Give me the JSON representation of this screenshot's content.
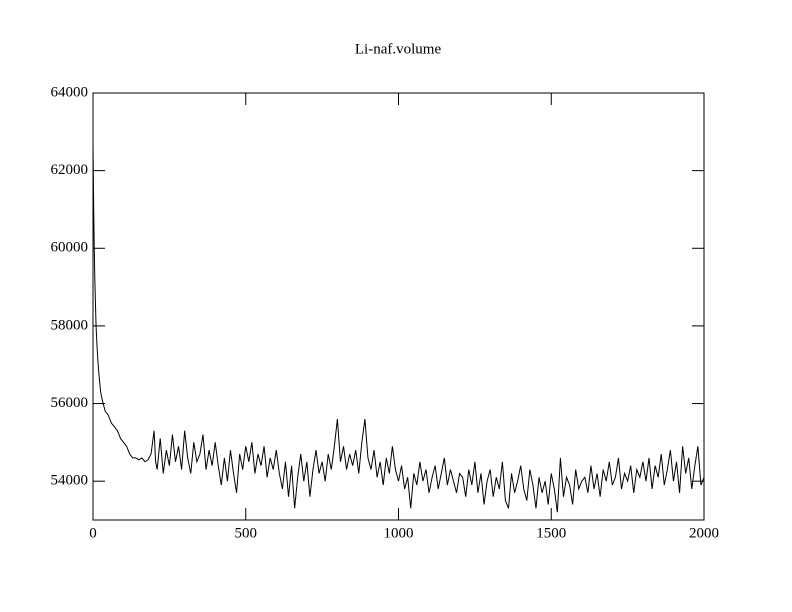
{
  "chart_data": {
    "type": "line",
    "title": "Li-naf.volume",
    "xlim": [
      0,
      2000
    ],
    "xticks": [
      0,
      500,
      1000,
      1500,
      2000
    ],
    "ylim": [
      53000,
      64000
    ],
    "yticks": [
      54000,
      56000,
      58000,
      60000,
      62000,
      64000
    ],
    "x": [
      0,
      2,
      4,
      6,
      8,
      10,
      13,
      16,
      20,
      25,
      30,
      40,
      50,
      60,
      70,
      80,
      90,
      100,
      110,
      120,
      130,
      140,
      150,
      160,
      170,
      180,
      190,
      200,
      205,
      210,
      220,
      230,
      240,
      250,
      260,
      270,
      280,
      290,
      300,
      310,
      320,
      330,
      340,
      350,
      360,
      370,
      380,
      390,
      400,
      410,
      420,
      430,
      440,
      450,
      460,
      470,
      480,
      490,
      500,
      510,
      520,
      530,
      540,
      550,
      560,
      570,
      580,
      590,
      600,
      610,
      620,
      630,
      640,
      650,
      660,
      670,
      680,
      690,
      700,
      710,
      720,
      730,
      740,
      750,
      760,
      770,
      780,
      790,
      800,
      810,
      820,
      830,
      840,
      850,
      860,
      870,
      880,
      890,
      900,
      910,
      920,
      930,
      940,
      950,
      960,
      970,
      980,
      990,
      1000,
      1010,
      1020,
      1030,
      1040,
      1050,
      1060,
      1070,
      1080,
      1090,
      1100,
      1110,
      1120,
      1130,
      1140,
      1150,
      1160,
      1170,
      1180,
      1190,
      1200,
      1210,
      1220,
      1230,
      1240,
      1250,
      1260,
      1270,
      1280,
      1290,
      1300,
      1310,
      1320,
      1330,
      1340,
      1350,
      1360,
      1370,
      1380,
      1390,
      1400,
      1410,
      1420,
      1430,
      1440,
      1450,
      1460,
      1470,
      1480,
      1490,
      1500,
      1510,
      1520,
      1530,
      1540,
      1550,
      1560,
      1570,
      1580,
      1590,
      1600,
      1610,
      1620,
      1630,
      1640,
      1650,
      1660,
      1670,
      1680,
      1690,
      1700,
      1710,
      1720,
      1730,
      1740,
      1750,
      1760,
      1770,
      1780,
      1790,
      1800,
      1810,
      1820,
      1830,
      1840,
      1850,
      1860,
      1870,
      1880,
      1890,
      1900,
      1910,
      1920,
      1930,
      1940,
      1950,
      1960,
      1970,
      1980,
      1990,
      2000
    ],
    "series": [
      {
        "color": "#000000",
        "values": [
          62700,
          61200,
          60000,
          59200,
          58600,
          58000,
          57500,
          57100,
          56700,
          56300,
          56100,
          55800,
          55700,
          55500,
          55400,
          55300,
          55100,
          55000,
          54900,
          54700,
          54600,
          54600,
          54550,
          54600,
          54500,
          54550,
          54700,
          55300,
          54500,
          54300,
          55100,
          54200,
          54800,
          54400,
          55200,
          54500,
          54900,
          54300,
          55300,
          54600,
          54200,
          55000,
          54500,
          54700,
          55200,
          54300,
          54800,
          54400,
          55000,
          54400,
          53900,
          54600,
          54000,
          54800,
          54200,
          53700,
          54700,
          54300,
          54900,
          54500,
          55000,
          54200,
          54700,
          54400,
          54900,
          54100,
          54600,
          54300,
          54800,
          54200,
          53800,
          54500,
          53600,
          54400,
          53300,
          54100,
          54700,
          54000,
          54500,
          53600,
          54300,
          54800,
          54200,
          54500,
          54000,
          54700,
          54300,
          54900,
          55600,
          54500,
          54900,
          54300,
          54700,
          54400,
          54800,
          54200,
          55000,
          55600,
          54600,
          54300,
          54800,
          54100,
          54500,
          53900,
          54600,
          54200,
          54900,
          54300,
          54000,
          54400,
          53800,
          54100,
          53300,
          54200,
          53900,
          54500,
          54000,
          54300,
          53700,
          54100,
          54400,
          53800,
          54200,
          54600,
          53900,
          54300,
          54000,
          53700,
          54200,
          54100,
          53600,
          54300,
          53900,
          54500,
          53700,
          54200,
          53400,
          54000,
          54300,
          53600,
          54100,
          53800,
          54500,
          53500,
          53300,
          54200,
          53700,
          54000,
          54400,
          53800,
          53500,
          54300,
          53900,
          53300,
          54100,
          53700,
          54000,
          53400,
          54200,
          53800,
          53200,
          54600,
          53600,
          54100,
          53900,
          53400,
          54300,
          53800,
          54000,
          54100,
          53700,
          54400,
          53800,
          54200,
          53600,
          54300,
          54000,
          54500,
          53900,
          54100,
          54600,
          53800,
          54200,
          54000,
          54400,
          53700,
          54300,
          54100,
          54500,
          54000,
          54600,
          53800,
          54400,
          54100,
          54700,
          53900,
          54300,
          54800,
          54000,
          54500,
          53700,
          54900,
          54200,
          54600,
          53800,
          54400,
          54900,
          53900,
          54100
        ]
      }
    ]
  }
}
